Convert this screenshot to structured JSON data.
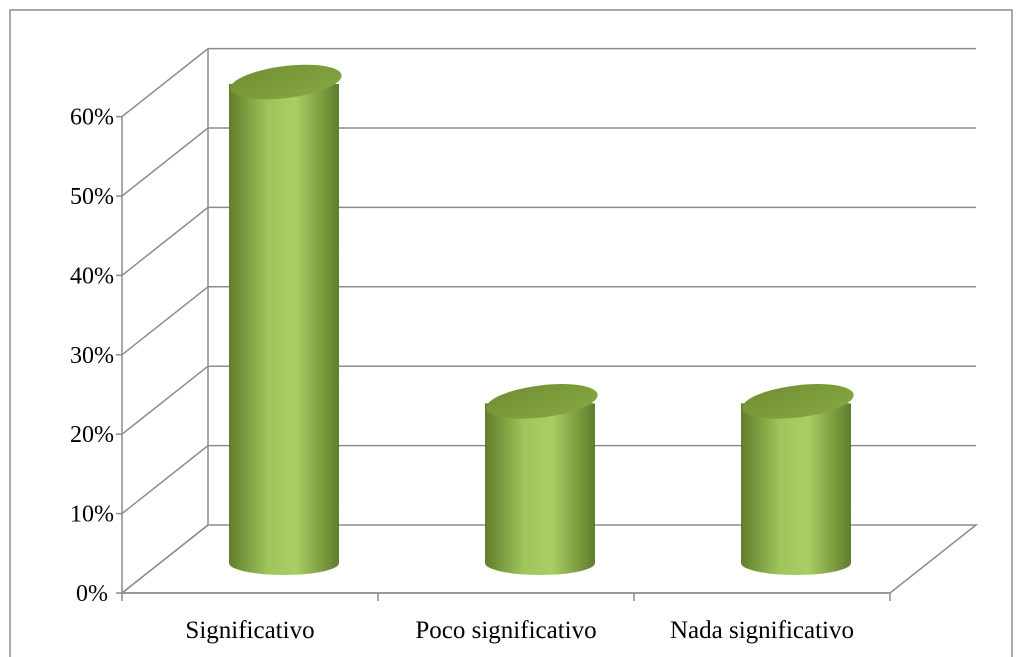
{
  "chart_data": {
    "type": "bar",
    "style": "3d-cylinder",
    "title": "",
    "xlabel": "",
    "ylabel": "",
    "categories": [
      "Significativo",
      "Poco significativo",
      "Nada significativo"
    ],
    "values": [
      0.6,
      0.2,
      0.2
    ],
    "ylim": [
      0,
      0.6
    ],
    "ytick_labels": [
      "0%",
      "10%",
      "20%",
      "30%",
      "40%",
      "50%",
      "60%"
    ],
    "grid": true,
    "legend": "none",
    "colors": {
      "bar_light": "#a4c95e",
      "bar_mid": "#8fb84a",
      "bar_dark": "#5f7d2a",
      "bar_top": "#7a9a3a",
      "grid": "#8c8c8c",
      "border": "#8c8c8c"
    }
  }
}
